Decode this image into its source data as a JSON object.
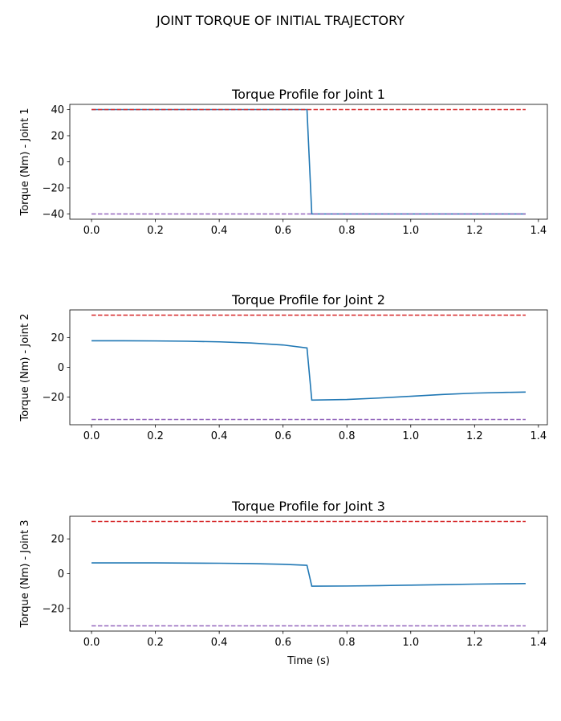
{
  "figure": {
    "suptitle": "JOINT TORQUE OF INITIAL TRAJECTORY"
  },
  "chart_data": [
    {
      "type": "line",
      "title": "Torque Profile for Joint 1",
      "xlabel": "",
      "ylabel": "Torque (Nm) - Joint 1",
      "xlim": [
        -0.068,
        1.428
      ],
      "ylim": [
        -44,
        44
      ],
      "xticks": [
        0.0,
        0.2,
        0.4,
        0.6,
        0.8,
        1.0,
        1.2,
        1.4
      ],
      "yticks": [
        -40,
        -20,
        0,
        20,
        40
      ],
      "grid": false,
      "series": [
        {
          "style": "solid",
          "color": "#1f77b4",
          "x": [
            0.0,
            0.675,
            0.69,
            1.36
          ],
          "y": [
            40,
            40,
            -40,
            -40
          ]
        },
        {
          "style": "dashed",
          "color": "#d62728",
          "x": [
            0.0,
            1.36
          ],
          "y": [
            40,
            40
          ]
        },
        {
          "style": "dashed",
          "color": "#9467bd",
          "x": [
            0.0,
            1.36
          ],
          "y": [
            -40,
            -40
          ]
        }
      ]
    },
    {
      "type": "line",
      "title": "Torque Profile for Joint 2",
      "xlabel": "",
      "ylabel": "Torque (Nm) - Joint 2",
      "xlim": [
        -0.068,
        1.428
      ],
      "ylim": [
        -38.5,
        38.5
      ],
      "xticks": [
        0.0,
        0.2,
        0.4,
        0.6,
        0.8,
        1.0,
        1.2,
        1.4
      ],
      "yticks": [
        -20,
        0,
        20
      ],
      "grid": false,
      "series": [
        {
          "style": "solid",
          "color": "#1f77b4",
          "x": [
            0.0,
            0.1,
            0.2,
            0.3,
            0.4,
            0.5,
            0.6,
            0.675,
            0.69,
            0.8,
            0.9,
            1.0,
            1.1,
            1.2,
            1.3,
            1.36
          ],
          "y": [
            17.8,
            17.8,
            17.7,
            17.5,
            17.1,
            16.3,
            15.0,
            13.0,
            -22.0,
            -21.6,
            -20.6,
            -19.4,
            -18.2,
            -17.3,
            -16.8,
            -16.6
          ]
        },
        {
          "style": "dashed",
          "color": "#d62728",
          "x": [
            0.0,
            1.36
          ],
          "y": [
            35,
            35
          ]
        },
        {
          "style": "dashed",
          "color": "#9467bd",
          "x": [
            0.0,
            1.36
          ],
          "y": [
            -35,
            -35
          ]
        }
      ]
    },
    {
      "type": "line",
      "title": "Torque Profile for Joint 3",
      "xlabel": "Time (s)",
      "ylabel": "Torque (Nm) - Joint 3",
      "xlim": [
        -0.068,
        1.428
      ],
      "ylim": [
        -33,
        33
      ],
      "xticks": [
        0.0,
        0.2,
        0.4,
        0.6,
        0.8,
        1.0,
        1.2,
        1.4
      ],
      "yticks": [
        -20,
        0,
        20
      ],
      "grid": false,
      "series": [
        {
          "style": "solid",
          "color": "#1f77b4",
          "x": [
            0.0,
            0.1,
            0.2,
            0.3,
            0.4,
            0.5,
            0.6,
            0.675,
            0.69,
            0.8,
            0.9,
            1.0,
            1.1,
            1.2,
            1.3,
            1.36
          ],
          "y": [
            6.2,
            6.2,
            6.2,
            6.1,
            6.0,
            5.8,
            5.4,
            4.8,
            -7.2,
            -7.1,
            -6.9,
            -6.6,
            -6.3,
            -6.0,
            -5.8,
            -5.7
          ]
        },
        {
          "style": "dashed",
          "color": "#d62728",
          "x": [
            0.0,
            1.36
          ],
          "y": [
            30,
            30
          ]
        },
        {
          "style": "dashed",
          "color": "#9467bd",
          "x": [
            0.0,
            1.36
          ],
          "y": [
            -30,
            -30
          ]
        }
      ]
    }
  ]
}
